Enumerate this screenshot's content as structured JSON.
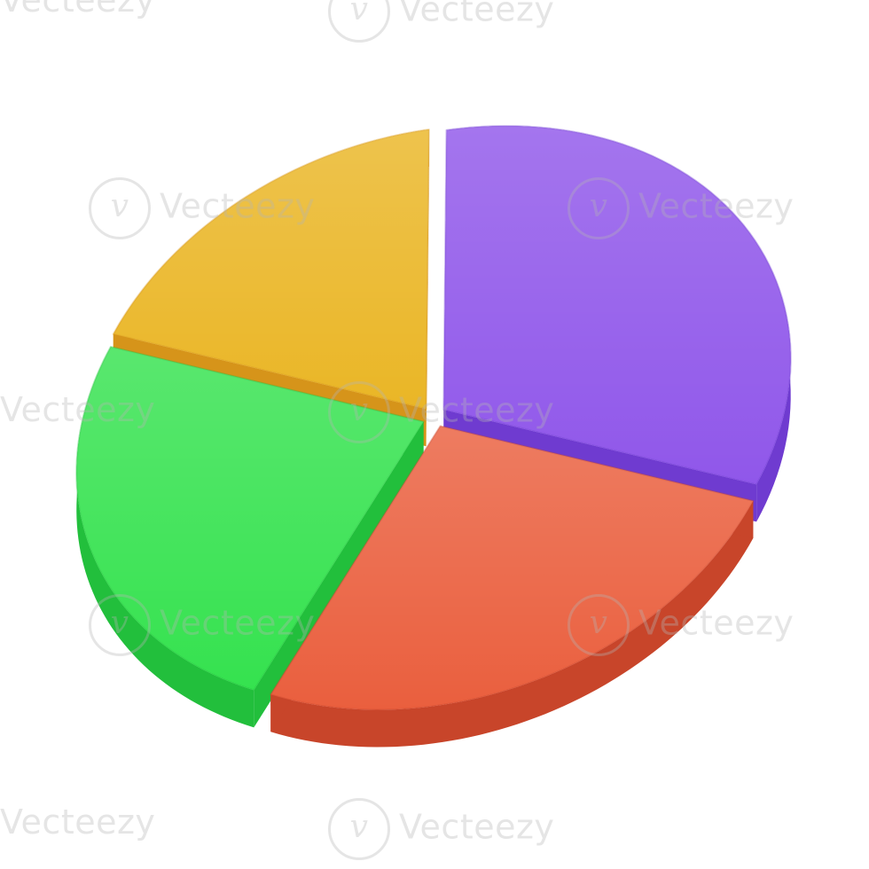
{
  "watermark": {
    "text": "Vecteezy",
    "logo_glyph": "v",
    "color": "#b4b4b4"
  },
  "chart_data": {
    "type": "pie",
    "style": "3d-exploded",
    "slices": [
      {
        "value": 32,
        "color": "#9057ea",
        "side_color": "#6f3bd0"
      },
      {
        "value": 26,
        "color": "#ea5f3e",
        "side_color": "#c8452a"
      },
      {
        "value": 24,
        "color": "#35e24f",
        "side_color": "#22bf3c"
      },
      {
        "value": 18,
        "color": "#eab626",
        "side_color": "#d6941a"
      }
    ]
  }
}
